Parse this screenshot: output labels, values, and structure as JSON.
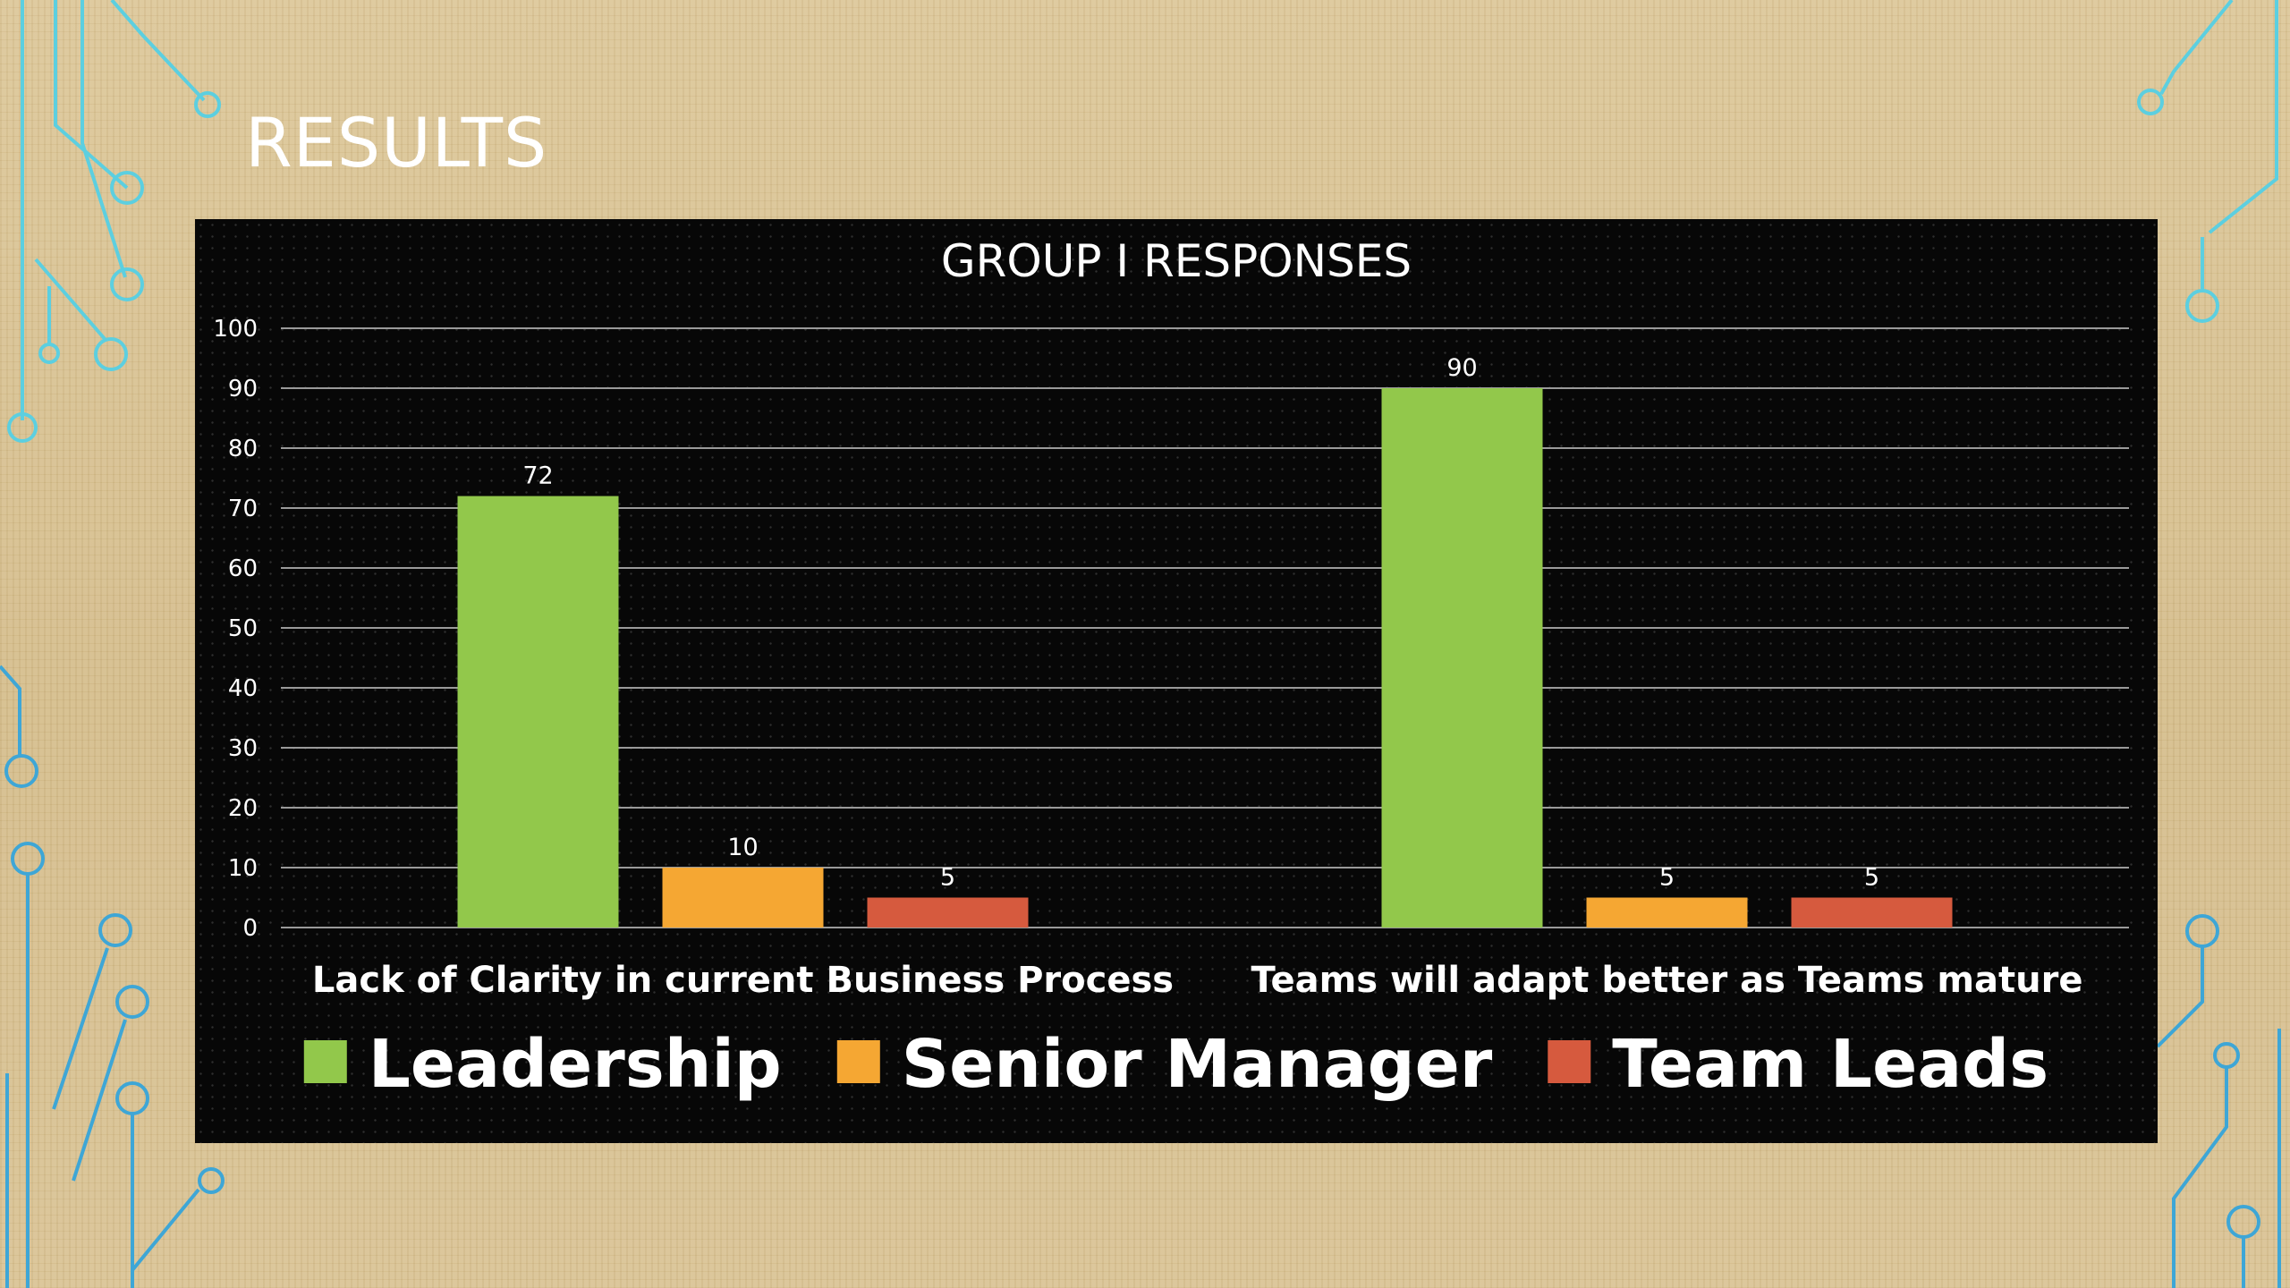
{
  "slide": {
    "title": "RESULTS"
  },
  "colors": {
    "panel_background": "#070707",
    "gridline": "#9a9a9a",
    "text": "#ffffff",
    "decor_left_top": "#5ccfe0",
    "decor_bottom": "#3ea6d6"
  },
  "chart_data": {
    "type": "bar",
    "title": "GROUP I RESPONSES",
    "categories": [
      "Lack of Clarity in current Business Process",
      "Teams will adapt better as Teams mature"
    ],
    "series": [
      {
        "name": "Leadership",
        "color": "#92c84b",
        "values": [
          72,
          90
        ]
      },
      {
        "name": "Senior Manager",
        "color": "#f5a733",
        "values": [
          10,
          5
        ]
      },
      {
        "name": "Team Leads",
        "color": "#d65a3e",
        "values": [
          5,
          5
        ]
      }
    ],
    "ylim": [
      0,
      100
    ],
    "yticks": [
      0,
      10,
      20,
      30,
      40,
      50,
      60,
      70,
      80,
      90,
      100
    ],
    "grid": true,
    "data_labels": true,
    "legend": "bottom"
  }
}
